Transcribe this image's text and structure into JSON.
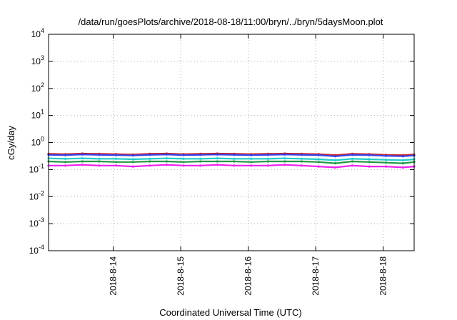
{
  "chart_data": {
    "type": "line",
    "title": "/data/run/goesPlots/archive/2018-08-18/11:00/bryn/../bryn/5daysMoon.plot",
    "xlabel": "Coordinated Universal Time (UTC)",
    "ylabel": "cGy/day",
    "y_scale": "log",
    "ylim": [
      0.0001,
      10000
    ],
    "xlim": [
      "2018-08-13 01:00",
      "2018-08-18 11:00"
    ],
    "y_ticks": [
      {
        "value": 0.0001,
        "base": "10",
        "exp": "-4"
      },
      {
        "value": 0.001,
        "base": "10",
        "exp": "-3"
      },
      {
        "value": 0.01,
        "base": "10",
        "exp": "-2"
      },
      {
        "value": 0.1,
        "base": "10",
        "exp": "-1"
      },
      {
        "value": 1,
        "base": "10",
        "exp": "0"
      },
      {
        "value": 10,
        "base": "10",
        "exp": "1"
      },
      {
        "value": 100,
        "base": "10",
        "exp": "2"
      },
      {
        "value": 1000,
        "base": "10",
        "exp": "3"
      },
      {
        "value": 10000,
        "base": "10",
        "exp": "4"
      }
    ],
    "x_ticks": [
      {
        "value": "2018-08-14 00:00",
        "label": "2018-8-14"
      },
      {
        "value": "2018-08-15 00:00",
        "label": "2018-8-15"
      },
      {
        "value": "2018-08-16 00:00",
        "label": "2018-8-16"
      },
      {
        "value": "2018-08-17 00:00",
        "label": "2018-8-17"
      },
      {
        "value": "2018-08-18 00:00",
        "label": "2018-8-18"
      }
    ],
    "grid": true,
    "x": [
      "2018-08-13 01:00",
      "2018-08-13 07:00",
      "2018-08-13 13:00",
      "2018-08-13 19:00",
      "2018-08-14 01:00",
      "2018-08-14 07:00",
      "2018-08-14 13:00",
      "2018-08-14 19:00",
      "2018-08-15 01:00",
      "2018-08-15 07:00",
      "2018-08-15 13:00",
      "2018-08-15 19:00",
      "2018-08-16 01:00",
      "2018-08-16 07:00",
      "2018-08-16 13:00",
      "2018-08-16 19:00",
      "2018-08-17 01:00",
      "2018-08-17 07:00",
      "2018-08-17 13:00",
      "2018-08-17 19:00",
      "2018-08-18 01:00",
      "2018-08-18 07:00",
      "2018-08-18 11:00"
    ],
    "series": [
      {
        "color": "#cc2222",
        "values": [
          0.38,
          0.37,
          0.39,
          0.38,
          0.37,
          0.36,
          0.38,
          0.39,
          0.37,
          0.38,
          0.39,
          0.38,
          0.37,
          0.38,
          0.39,
          0.38,
          0.37,
          0.34,
          0.38,
          0.37,
          0.35,
          0.34,
          0.36
        ]
      },
      {
        "color": "#3344ee",
        "values": [
          0.35,
          0.34,
          0.36,
          0.35,
          0.34,
          0.33,
          0.35,
          0.36,
          0.34,
          0.35,
          0.36,
          0.35,
          0.34,
          0.35,
          0.36,
          0.35,
          0.34,
          0.31,
          0.35,
          0.34,
          0.32,
          0.31,
          0.33
        ]
      },
      {
        "color": "#22cccc",
        "values": [
          0.26,
          0.25,
          0.26,
          0.25,
          0.25,
          0.24,
          0.25,
          0.26,
          0.25,
          0.25,
          0.26,
          0.25,
          0.25,
          0.25,
          0.26,
          0.25,
          0.24,
          0.22,
          0.25,
          0.24,
          0.23,
          0.22,
          0.24
        ]
      },
      {
        "color": "#229944",
        "values": [
          0.2,
          0.19,
          0.2,
          0.2,
          0.19,
          0.19,
          0.2,
          0.2,
          0.19,
          0.2,
          0.2,
          0.2,
          0.19,
          0.2,
          0.2,
          0.2,
          0.19,
          0.17,
          0.2,
          0.19,
          0.18,
          0.17,
          0.19
        ]
      },
      {
        "color": "#ee22ee",
        "values": [
          0.14,
          0.14,
          0.15,
          0.14,
          0.14,
          0.13,
          0.14,
          0.15,
          0.14,
          0.14,
          0.15,
          0.14,
          0.14,
          0.14,
          0.15,
          0.14,
          0.13,
          0.12,
          0.14,
          0.13,
          0.13,
          0.12,
          0.13
        ]
      }
    ]
  }
}
